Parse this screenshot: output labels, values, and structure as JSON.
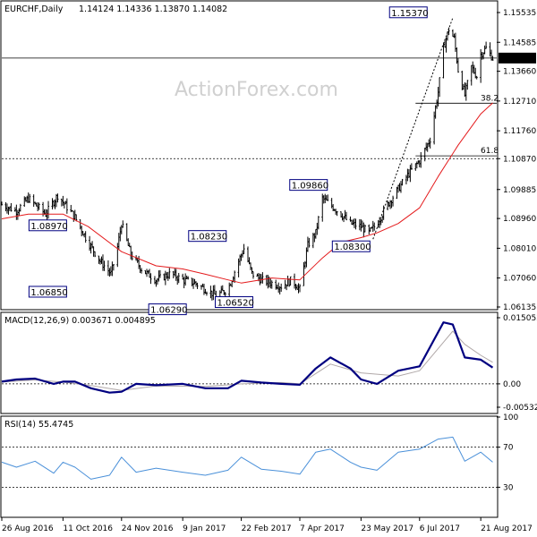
{
  "header": {
    "symbol_tf": "EURCHF,Daily",
    "ohlc": "1.14124 1.14336 1.13870 1.14082"
  },
  "watermark": "ActionForex.com",
  "colors": {
    "price": "#000000",
    "ma": "#e41a1c",
    "macd": "#000080",
    "signal": "#b0a8a8",
    "rsi": "#4a90d9",
    "level_box_border": "#000080",
    "price_box_bg": "#000000",
    "price_box_text": "#ffffff"
  },
  "chart_data": [
    {
      "type": "candlestick",
      "title": "EURCHF,Daily",
      "ylim": [
        1.06135,
        1.15535
      ],
      "yticks": [
        "1.15535",
        "1.14585",
        "1.13660",
        "1.12710",
        "1.11760",
        "1.10870",
        "1.09885",
        "1.08960",
        "1.08010",
        "1.07060",
        "1.06135"
      ],
      "current_price": "1.14082",
      "xlabels": [
        "26 Aug 2016",
        "11 Oct 2016",
        "24 Nov 2016",
        "9 Jan 2017",
        "22 Feb 2017",
        "7 Apr 2017",
        "23 May 2017",
        "6 Jul 2017",
        "21 Aug 2017"
      ],
      "x_dates": [
        "2016-08-26",
        "2016-10-11",
        "2016-11-24",
        "2017-01-09",
        "2017-02-22",
        "2017-04-07",
        "2017-05-23",
        "2017-07-06",
        "2017-08-21"
      ],
      "close_path": [
        [
          "2016-08-26",
          1.094
        ],
        [
          "2016-09-06",
          1.092
        ],
        [
          "2016-09-15",
          1.096
        ],
        [
          "2016-09-28",
          1.091
        ],
        [
          "2016-10-07",
          1.097
        ],
        [
          "2016-10-20",
          1.09
        ],
        [
          "2016-10-30",
          1.082
        ],
        [
          "2016-11-08",
          1.076
        ],
        [
          "2016-11-16",
          1.072
        ],
        [
          "2016-11-20",
          1.078
        ],
        [
          "2016-11-24",
          1.088
        ],
        [
          "2016-12-01",
          1.078
        ],
        [
          "2016-12-10",
          1.073
        ],
        [
          "2016-12-20",
          1.07
        ],
        [
          "2016-12-31",
          1.072
        ],
        [
          "2017-01-09",
          1.07
        ],
        [
          "2017-01-18",
          1.069
        ],
        [
          "2017-01-26",
          1.067
        ],
        [
          "2017-02-03",
          1.065
        ],
        [
          "2017-02-12",
          1.067
        ],
        [
          "2017-02-20",
          1.076
        ],
        [
          "2017-02-24",
          1.08
        ],
        [
          "2017-03-02",
          1.072
        ],
        [
          "2017-03-09",
          1.07
        ],
        [
          "2017-03-17",
          1.069
        ],
        [
          "2017-03-24",
          1.068
        ],
        [
          "2017-04-01",
          1.07
        ],
        [
          "2017-04-07",
          1.067
        ],
        [
          "2017-04-13",
          1.081
        ],
        [
          "2017-04-19",
          1.085
        ],
        [
          "2017-04-24",
          1.096
        ],
        [
          "2017-04-30",
          1.094
        ],
        [
          "2017-05-08",
          1.091
        ],
        [
          "2017-05-15",
          1.088
        ],
        [
          "2017-05-23",
          1.087
        ],
        [
          "2017-05-29",
          1.085
        ],
        [
          "2017-06-04",
          1.088
        ],
        [
          "2017-06-12",
          1.094
        ],
        [
          "2017-06-20",
          1.099
        ],
        [
          "2017-06-28",
          1.104
        ],
        [
          "2017-07-06",
          1.108
        ],
        [
          "2017-07-14",
          1.115
        ],
        [
          "2017-07-20",
          1.13
        ],
        [
          "2017-07-24",
          1.144
        ],
        [
          "2017-07-28",
          1.15
        ],
        [
          "2017-08-01",
          1.147
        ],
        [
          "2017-08-04",
          1.137
        ],
        [
          "2017-08-09",
          1.129
        ],
        [
          "2017-08-14",
          1.138
        ],
        [
          "2017-08-18",
          1.135
        ],
        [
          "2017-08-21",
          1.142
        ],
        [
          "2017-08-25",
          1.144
        ],
        [
          "2017-08-30",
          1.1408
        ]
      ],
      "moving_average": [
        [
          "2016-08-26",
          1.0895
        ],
        [
          "2016-09-15",
          1.091
        ],
        [
          "2016-10-11",
          1.091
        ],
        [
          "2016-10-30",
          1.087
        ],
        [
          "2016-11-24",
          1.079
        ],
        [
          "2016-12-20",
          1.0745
        ],
        [
          "2017-01-09",
          1.0735
        ],
        [
          "2017-01-26",
          1.0718
        ],
        [
          "2017-02-12",
          1.07
        ],
        [
          "2017-02-22",
          1.069
        ],
        [
          "2017-03-17",
          1.0706
        ],
        [
          "2017-04-07",
          1.07
        ],
        [
          "2017-04-24",
          1.077
        ],
        [
          "2017-05-08",
          1.082
        ],
        [
          "2017-05-23",
          1.0835
        ],
        [
          "2017-06-04",
          1.085
        ],
        [
          "2017-06-20",
          1.088
        ],
        [
          "2017-07-06",
          1.093
        ],
        [
          "2017-07-20",
          1.103
        ],
        [
          "2017-08-04",
          1.113
        ],
        [
          "2017-08-21",
          1.123
        ],
        [
          "2017-08-30",
          1.1265
        ]
      ],
      "level_labels": [
        {
          "text": "1.08970",
          "date": "2016-10-11",
          "value": 1.0897
        },
        {
          "text": "1.06850",
          "date": "2016-10-11",
          "value": 1.0685
        },
        {
          "text": "1.08230",
          "date": "2017-02-08",
          "value": 1.0823
        },
        {
          "text": "1.06290",
          "date": "2017-01-09",
          "value": 1.0629
        },
        {
          "text": "1.06520",
          "date": "2017-02-28",
          "value": 1.0652
        },
        {
          "text": "1.09860",
          "date": "2017-04-25",
          "value": 1.0986
        },
        {
          "text": "1.08300",
          "date": "2017-05-27",
          "value": 1.083
        },
        {
          "text": "1.15370",
          "date": "2017-07-09",
          "value": 1.1537
        }
      ],
      "horizontal_lines": [
        {
          "value": 1.14082,
          "style": "solid",
          "from_date": "2016-08-26",
          "label": "1.14082"
        },
        {
          "value": 1.1087,
          "style": "dashed",
          "from_date": "2016-08-26",
          "label": "1.10870"
        },
        {
          "value": 1.1264,
          "style": "solid",
          "from_date": "2017-07-03",
          "label": "38.2"
        },
        {
          "value": 1.1096,
          "style": "solid",
          "from_date": "2017-07-03",
          "label": "61.8"
        }
      ],
      "trend_line": [
        [
          "2017-06-01",
          1.083
        ],
        [
          "2017-07-31",
          1.1537
        ]
      ]
    },
    {
      "type": "line",
      "title": "MACD(12,26,9) 0.003671 0.004895",
      "ylim": [
        -0.00532,
        0.015052
      ],
      "yticks": [
        "0.015052",
        "0.00",
        "-0.005321"
      ],
      "zero_label": "0.00",
      "series": [
        {
          "name": "MACD",
          "values": [
            [
              "2016-08-26",
              0.0005
            ],
            [
              "2016-09-06",
              0.001
            ],
            [
              "2016-09-20",
              0.0012
            ],
            [
              "2016-10-04",
              0.0
            ],
            [
              "2016-10-11",
              0.0005
            ],
            [
              "2016-10-20",
              0.0005
            ],
            [
              "2016-11-01",
              -0.001
            ],
            [
              "2016-11-15",
              -0.002
            ],
            [
              "2016-11-24",
              -0.0018
            ],
            [
              "2016-12-05",
              0.0
            ],
            [
              "2016-12-20",
              -0.0003
            ],
            [
              "2017-01-09",
              0.0
            ],
            [
              "2017-01-26",
              -0.001
            ],
            [
              "2017-02-12",
              -0.001
            ],
            [
              "2017-02-22",
              0.0007
            ],
            [
              "2017-03-09",
              0.0003
            ],
            [
              "2017-03-24",
              0.0
            ],
            [
              "2017-04-07",
              -0.0002
            ],
            [
              "2017-04-19",
              0.0035
            ],
            [
              "2017-04-30",
              0.006
            ],
            [
              "2017-05-15",
              0.0035
            ],
            [
              "2017-05-23",
              0.001
            ],
            [
              "2017-06-04",
              0.0
            ],
            [
              "2017-06-20",
              0.003
            ],
            [
              "2017-07-06",
              0.004
            ],
            [
              "2017-07-24",
              0.014
            ],
            [
              "2017-07-31",
              0.0135
            ],
            [
              "2017-08-09",
              0.006
            ],
            [
              "2017-08-21",
              0.0055
            ],
            [
              "2017-08-30",
              0.0037
            ]
          ]
        },
        {
          "name": "Signal",
          "values": [
            [
              "2016-08-26",
              0.0004
            ],
            [
              "2016-09-20",
              0.0009
            ],
            [
              "2016-10-11",
              0.0004
            ],
            [
              "2016-11-01",
              -0.0004
            ],
            [
              "2016-11-24",
              -0.0015
            ],
            [
              "2016-12-20",
              -0.0005
            ],
            [
              "2017-01-26",
              -0.0006
            ],
            [
              "2017-02-22",
              0.0
            ],
            [
              "2017-03-24",
              0.0003
            ],
            [
              "2017-04-07",
              0.0
            ],
            [
              "2017-04-30",
              0.0045
            ],
            [
              "2017-05-23",
              0.0025
            ],
            [
              "2017-06-20",
              0.0018
            ],
            [
              "2017-07-06",
              0.003
            ],
            [
              "2017-07-31",
              0.012
            ],
            [
              "2017-08-09",
              0.009
            ],
            [
              "2017-08-21",
              0.0065
            ],
            [
              "2017-08-30",
              0.0049
            ]
          ]
        }
      ]
    },
    {
      "type": "line",
      "title": "RSI(14) 55.4745",
      "ylim": [
        0,
        100
      ],
      "yticks": [
        "100",
        "70",
        "30",
        "0"
      ],
      "dotted_levels": [
        70,
        30
      ],
      "series": [
        {
          "name": "RSI",
          "values": [
            [
              "2016-08-26",
              55
            ],
            [
              "2016-09-06",
              50
            ],
            [
              "2016-09-20",
              56
            ],
            [
              "2016-10-04",
              44
            ],
            [
              "2016-10-11",
              55
            ],
            [
              "2016-10-20",
              50
            ],
            [
              "2016-11-01",
              38
            ],
            [
              "2016-11-15",
              42
            ],
            [
              "2016-11-24",
              60
            ],
            [
              "2016-12-05",
              45
            ],
            [
              "2016-12-20",
              49
            ],
            [
              "2017-01-09",
              45
            ],
            [
              "2017-01-26",
              42
            ],
            [
              "2017-02-12",
              47
            ],
            [
              "2017-02-22",
              60
            ],
            [
              "2017-03-09",
              48
            ],
            [
              "2017-03-24",
              46
            ],
            [
              "2017-04-07",
              43
            ],
            [
              "2017-04-19",
              65
            ],
            [
              "2017-04-30",
              68
            ],
            [
              "2017-05-15",
              55
            ],
            [
              "2017-05-23",
              50
            ],
            [
              "2017-06-04",
              47
            ],
            [
              "2017-06-20",
              65
            ],
            [
              "2017-07-06",
              68
            ],
            [
              "2017-07-20",
              78
            ],
            [
              "2017-07-31",
              80
            ],
            [
              "2017-08-09",
              56
            ],
            [
              "2017-08-21",
              65
            ],
            [
              "2017-08-30",
              55
            ]
          ]
        }
      ]
    }
  ]
}
